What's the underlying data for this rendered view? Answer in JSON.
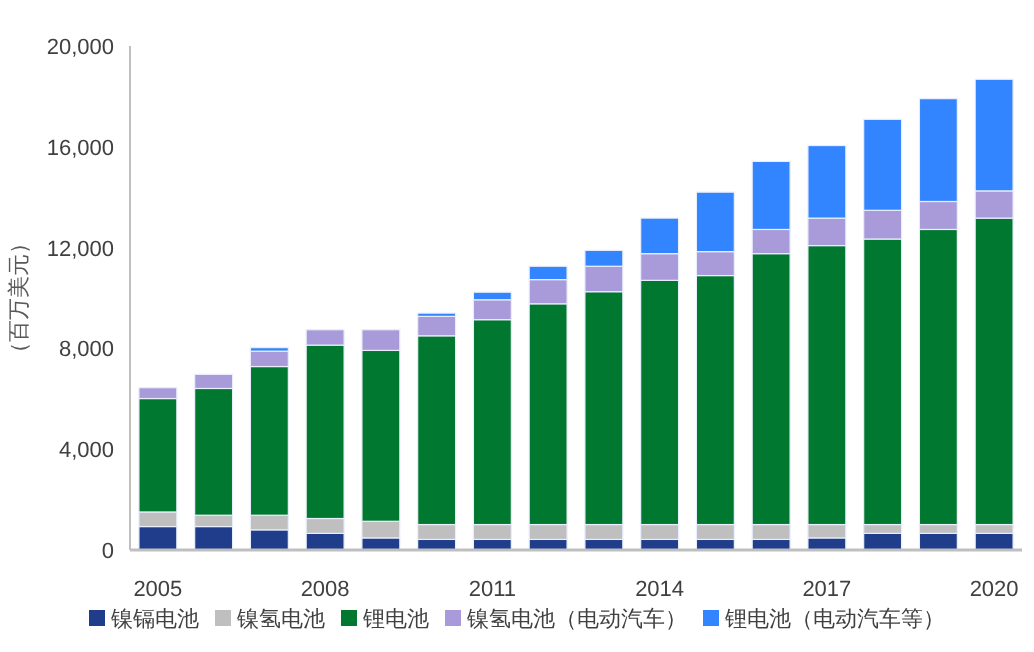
{
  "chart_data": {
    "type": "bar",
    "stacked": true,
    "ylabel": "（百万美元）",
    "categories": [
      "2005",
      null,
      null,
      "2008",
      null,
      null,
      "2011",
      null,
      null,
      "2014",
      null,
      null,
      "2017",
      null,
      null,
      "2020"
    ],
    "series": [
      {
        "name": "镍镉电池",
        "color": "#1f3d8a",
        "values": [
          930,
          930,
          800,
          660,
          480,
          420,
          420,
          420,
          420,
          420,
          420,
          420,
          480,
          660,
          660,
          660
        ]
      },
      {
        "name": "镍氢电池",
        "color": "#bfbfbf",
        "values": [
          580,
          450,
          580,
          590,
          660,
          590,
          590,
          590,
          590,
          590,
          590,
          590,
          530,
          350,
          350,
          350
        ]
      },
      {
        "name": "锂电池",
        "color": "#00782f",
        "values": [
          4500,
          5030,
          5900,
          6880,
          6780,
          7490,
          8130,
          8760,
          9240,
          9690,
          9880,
          10750,
          11070,
          11330,
          11710,
          12160
        ]
      },
      {
        "name": "镍氢电池（电动汽车）",
        "color": "#a99bd9",
        "values": [
          430,
          560,
          610,
          610,
          820,
          770,
          790,
          960,
          1010,
          1060,
          950,
          960,
          1090,
          1140,
          1110,
          1080
        ]
      },
      {
        "name": "锂电池（电动汽车等）",
        "color": "#3385ff",
        "values": [
          0,
          0,
          140,
          0,
          0,
          130,
          300,
          530,
          630,
          1410,
          2360,
          2700,
          2880,
          3610,
          4080,
          4430
        ]
      }
    ],
    "ylim": [
      0,
      20000
    ],
    "yticks": [
      0,
      {
        "value": 4000,
        "label": "4,000"
      },
      {
        "value": 8000,
        "label": "8,000"
      },
      {
        "value": 12000,
        "label": "12,000"
      },
      {
        "value": 16000,
        "label": "16,000"
      },
      {
        "value": 20000,
        "label": "20,000"
      }
    ],
    "grid": false,
    "legend": "bottom"
  }
}
